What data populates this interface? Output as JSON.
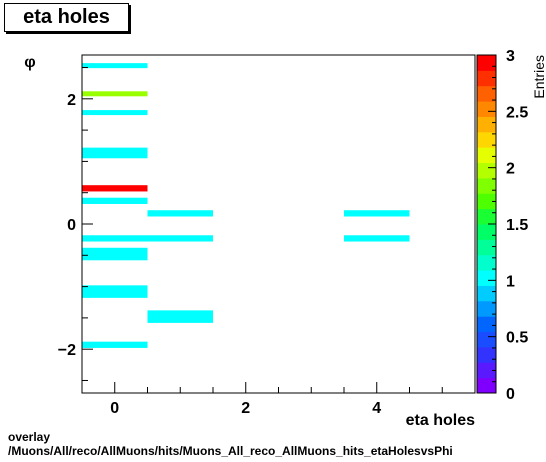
{
  "title": "eta holes",
  "footer": {
    "line1": "overlay",
    "line2": "/Muons/All/reco/AllMuons/hits/Muons_All_reco_AllMuons_hits_etaHolesvsPhi"
  },
  "chart_data": {
    "type": "heatmap",
    "title": "eta holes",
    "xlabel": "eta holes",
    "ylabel": "φ",
    "zlabel": "Entries",
    "xlim": [
      -0.5,
      5.5
    ],
    "ylim": [
      -2.7,
      2.7
    ],
    "zlim": [
      0,
      3
    ],
    "x_ticks": [
      0,
      2,
      4
    ],
    "y_ticks": [
      -2,
      0,
      2
    ],
    "z_ticks": [
      "0",
      "0.5",
      "1",
      "1.5",
      "2",
      "2.5",
      "3"
    ],
    "bins": [
      {
        "x": [
          -0.5,
          0.5
        ],
        "y": [
          2.5,
          2.57
        ],
        "value": 1
      },
      {
        "x": [
          -0.5,
          0.5
        ],
        "y": [
          2.05,
          2.12
        ],
        "value": 2
      },
      {
        "x": [
          -0.5,
          0.5
        ],
        "y": [
          1.75,
          1.82
        ],
        "value": 1
      },
      {
        "x": [
          -0.5,
          0.5
        ],
        "y": [
          1.05,
          1.22
        ],
        "value": 1
      },
      {
        "x": [
          -0.5,
          0.5
        ],
        "y": [
          0.52,
          0.62
        ],
        "value": 3
      },
      {
        "x": [
          -0.5,
          0.5
        ],
        "y": [
          0.32,
          0.42
        ],
        "value": 1
      },
      {
        "x": [
          0.5,
          1.5
        ],
        "y": [
          0.12,
          0.22
        ],
        "value": 1
      },
      {
        "x": [
          3.5,
          4.5
        ],
        "y": [
          0.12,
          0.22
        ],
        "value": 1
      },
      {
        "x": [
          -0.5,
          1.5
        ],
        "y": [
          -0.28,
          -0.18
        ],
        "value": 1
      },
      {
        "x": [
          3.5,
          4.5
        ],
        "y": [
          -0.28,
          -0.18
        ],
        "value": 1
      },
      {
        "x": [
          -0.5,
          0.5
        ],
        "y": [
          -0.58,
          -0.38
        ],
        "value": 1
      },
      {
        "x": [
          -0.5,
          0.5
        ],
        "y": [
          -1.18,
          -0.98
        ],
        "value": 1
      },
      {
        "x": [
          0.5,
          1.5
        ],
        "y": [
          -1.58,
          -1.38
        ],
        "value": 1
      },
      {
        "x": [
          -0.5,
          0.5
        ],
        "y": [
          -1.98,
          -1.88
        ],
        "value": 1
      }
    ],
    "palette": [
      "#7f00ff",
      "#5a1aff",
      "#3333ff",
      "#1a4dff",
      "#0066ff",
      "#0099ff",
      "#00ccff",
      "#00ffff",
      "#00ffcc",
      "#00ff99",
      "#00ff66",
      "#1aff33",
      "#4dff00",
      "#80ff00",
      "#b3ff00",
      "#e6ff00",
      "#ffd700",
      "#ffb000",
      "#ff8800",
      "#ff6000",
      "#ff3000",
      "#ff0000"
    ],
    "value_colors": {
      "1": "#00ffff",
      "2": "#99ff00",
      "3": "#ff0000"
    }
  }
}
